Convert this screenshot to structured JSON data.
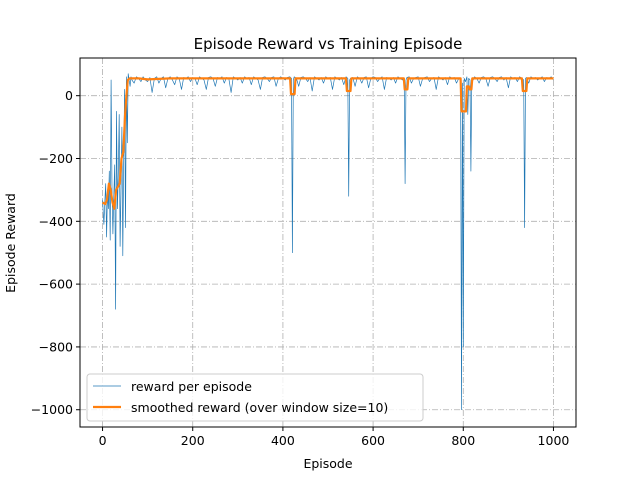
{
  "chart_data": {
    "type": "line",
    "title": "Episode Reward vs Training Episode",
    "xlabel": "Episode",
    "ylabel": "Episode Reward",
    "xlim": [
      -50,
      1050
    ],
    "ylim": [
      -1055,
      120
    ],
    "xticks": [
      0,
      200,
      400,
      600,
      800,
      1000
    ],
    "yticks": [
      0,
      -200,
      -400,
      -600,
      -800,
      -1000
    ],
    "xtick_labels": [
      "0",
      "200",
      "400",
      "600",
      "800",
      "1000"
    ],
    "ytick_labels": [
      "0",
      "−200",
      "−400",
      "−600",
      "−800",
      "−1000"
    ],
    "grid": true,
    "grid_style": "dash-dot",
    "legend_position": "lower-left",
    "colors": {
      "raw": "#1f77b4",
      "smooth": "#ff7f0e",
      "grid": "#b0b0b0"
    },
    "series": [
      {
        "name": "reward per episode",
        "style": "thin-line",
        "points": [
          [
            0,
            -330
          ],
          [
            3,
            -410
          ],
          [
            5,
            -340
          ],
          [
            7,
            -280
          ],
          [
            9,
            -450
          ],
          [
            11,
            -300
          ],
          [
            13,
            -360
          ],
          [
            15,
            -240
          ],
          [
            17,
            -460
          ],
          [
            19,
            50
          ],
          [
            21,
            -300
          ],
          [
            23,
            -440
          ],
          [
            25,
            -320
          ],
          [
            27,
            -220
          ],
          [
            29,
            -680
          ],
          [
            31,
            -50
          ],
          [
            33,
            -360
          ],
          [
            35,
            -250
          ],
          [
            37,
            -60
          ],
          [
            39,
            -480
          ],
          [
            41,
            -300
          ],
          [
            43,
            -100
          ],
          [
            45,
            -510
          ],
          [
            47,
            -200
          ],
          [
            49,
            20
          ],
          [
            51,
            -420
          ],
          [
            53,
            60
          ],
          [
            55,
            -150
          ],
          [
            57,
            70
          ],
          [
            59,
            50
          ],
          [
            61,
            30
          ],
          [
            63,
            60
          ],
          [
            65,
            50
          ],
          [
            70,
            40
          ],
          [
            75,
            60
          ],
          [
            80,
            55
          ],
          [
            85,
            45
          ],
          [
            90,
            60
          ],
          [
            95,
            50
          ],
          [
            100,
            45
          ],
          [
            105,
            58
          ],
          [
            110,
            10
          ],
          [
            115,
            55
          ],
          [
            120,
            60
          ],
          [
            125,
            40
          ],
          [
            130,
            55
          ],
          [
            135,
            60
          ],
          [
            140,
            25
          ],
          [
            145,
            55
          ],
          [
            150,
            60
          ],
          [
            155,
            50
          ],
          [
            160,
            35
          ],
          [
            165,
            60
          ],
          [
            170,
            55
          ],
          [
            175,
            20
          ],
          [
            180,
            58
          ],
          [
            185,
            55
          ],
          [
            190,
            60
          ],
          [
            195,
            45
          ],
          [
            200,
            57
          ],
          [
            205,
            55
          ],
          [
            210,
            35
          ],
          [
            215,
            60
          ],
          [
            220,
            55
          ],
          [
            225,
            50
          ],
          [
            230,
            20
          ],
          [
            235,
            58
          ],
          [
            240,
            60
          ],
          [
            245,
            55
          ],
          [
            250,
            30
          ],
          [
            255,
            58
          ],
          [
            260,
            55
          ],
          [
            265,
            60
          ],
          [
            270,
            40
          ],
          [
            275,
            58
          ],
          [
            280,
            55
          ],
          [
            285,
            10
          ],
          [
            290,
            60
          ],
          [
            295,
            55
          ],
          [
            300,
            50
          ],
          [
            305,
            58
          ],
          [
            310,
            40
          ],
          [
            315,
            60
          ],
          [
            320,
            55
          ],
          [
            325,
            58
          ],
          [
            330,
            35
          ],
          [
            335,
            60
          ],
          [
            340,
            55
          ],
          [
            345,
            50
          ],
          [
            350,
            20
          ],
          [
            355,
            58
          ],
          [
            360,
            60
          ],
          [
            365,
            55
          ],
          [
            370,
            45
          ],
          [
            375,
            58
          ],
          [
            380,
            60
          ],
          [
            385,
            30
          ],
          [
            390,
            55
          ],
          [
            395,
            60
          ],
          [
            400,
            55
          ],
          [
            405,
            50
          ],
          [
            410,
            58
          ],
          [
            415,
            60
          ],
          [
            419,
            55
          ],
          [
            421,
            -500
          ],
          [
            423,
            50
          ],
          [
            425,
            60
          ],
          [
            430,
            55
          ],
          [
            435,
            30
          ],
          [
            440,
            58
          ],
          [
            445,
            60
          ],
          [
            450,
            55
          ],
          [
            455,
            45
          ],
          [
            460,
            58
          ],
          [
            465,
            15
          ],
          [
            470,
            60
          ],
          [
            475,
            55
          ],
          [
            480,
            50
          ],
          [
            485,
            58
          ],
          [
            490,
            40
          ],
          [
            495,
            60
          ],
          [
            500,
            55
          ],
          [
            505,
            58
          ],
          [
            510,
            20
          ],
          [
            515,
            60
          ],
          [
            520,
            55
          ],
          [
            525,
            50
          ],
          [
            530,
            58
          ],
          [
            535,
            35
          ],
          [
            540,
            60
          ],
          [
            544,
            55
          ],
          [
            546,
            -320
          ],
          [
            548,
            50
          ],
          [
            550,
            55
          ],
          [
            555,
            58
          ],
          [
            560,
            30
          ],
          [
            565,
            60
          ],
          [
            570,
            55
          ],
          [
            575,
            40
          ],
          [
            580,
            58
          ],
          [
            585,
            60
          ],
          [
            590,
            25
          ],
          [
            595,
            55
          ],
          [
            600,
            60
          ],
          [
            605,
            58
          ],
          [
            610,
            45
          ],
          [
            615,
            55
          ],
          [
            620,
            60
          ],
          [
            625,
            20
          ],
          [
            630,
            58
          ],
          [
            635,
            55
          ],
          [
            640,
            50
          ],
          [
            645,
            58
          ],
          [
            650,
            40
          ],
          [
            655,
            60
          ],
          [
            660,
            55
          ],
          [
            665,
            50
          ],
          [
            669,
            55
          ],
          [
            671,
            -280
          ],
          [
            673,
            50
          ],
          [
            675,
            58
          ],
          [
            680,
            60
          ],
          [
            685,
            40
          ],
          [
            690,
            55
          ],
          [
            695,
            58
          ],
          [
            700,
            60
          ],
          [
            705,
            30
          ],
          [
            710,
            55
          ],
          [
            715,
            58
          ],
          [
            720,
            60
          ],
          [
            725,
            45
          ],
          [
            730,
            55
          ],
          [
            735,
            58
          ],
          [
            740,
            20
          ],
          [
            745,
            60
          ],
          [
            750,
            55
          ],
          [
            755,
            50
          ],
          [
            760,
            58
          ],
          [
            765,
            35
          ],
          [
            770,
            60
          ],
          [
            775,
            55
          ],
          [
            780,
            58
          ],
          [
            785,
            40
          ],
          [
            790,
            55
          ],
          [
            794,
            50
          ],
          [
            796,
            -1000
          ],
          [
            798,
            40
          ],
          [
            800,
            -800
          ],
          [
            802,
            55
          ],
          [
            805,
            45
          ],
          [
            808,
            60
          ],
          [
            810,
            -60
          ],
          [
            812,
            55
          ],
          [
            815,
            50
          ],
          [
            817,
            -240
          ],
          [
            819,
            55
          ],
          [
            822,
            50
          ],
          [
            825,
            60
          ],
          [
            830,
            55
          ],
          [
            835,
            40
          ],
          [
            840,
            58
          ],
          [
            845,
            60
          ],
          [
            850,
            55
          ],
          [
            855,
            30
          ],
          [
            860,
            58
          ],
          [
            865,
            60
          ],
          [
            870,
            55
          ],
          [
            875,
            45
          ],
          [
            880,
            58
          ],
          [
            885,
            60
          ],
          [
            890,
            50
          ],
          [
            895,
            58
          ],
          [
            900,
            25
          ],
          [
            905,
            60
          ],
          [
            910,
            55
          ],
          [
            915,
            58
          ],
          [
            920,
            45
          ],
          [
            925,
            60
          ],
          [
            930,
            55
          ],
          [
            934,
            50
          ],
          [
            936,
            -420
          ],
          [
            938,
            55
          ],
          [
            940,
            58
          ],
          [
            945,
            40
          ],
          [
            950,
            60
          ],
          [
            955,
            55
          ],
          [
            960,
            58
          ],
          [
            965,
            50
          ],
          [
            970,
            55
          ],
          [
            975,
            60
          ],
          [
            980,
            45
          ],
          [
            985,
            58
          ],
          [
            990,
            55
          ],
          [
            995,
            60
          ],
          [
            1000,
            50
          ]
        ]
      },
      {
        "name": "smoothed reward (over window size=10)",
        "style": "thick-line",
        "points": [
          [
            0,
            -340
          ],
          [
            6,
            -345
          ],
          [
            10,
            -330
          ],
          [
            14,
            -280
          ],
          [
            18,
            -300
          ],
          [
            22,
            -340
          ],
          [
            26,
            -360
          ],
          [
            30,
            -300
          ],
          [
            34,
            -290
          ],
          [
            38,
            -280
          ],
          [
            42,
            -200
          ],
          [
            46,
            -180
          ],
          [
            50,
            -60
          ],
          [
            53,
            0
          ],
          [
            56,
            50
          ],
          [
            60,
            55
          ],
          [
            80,
            55
          ],
          [
            100,
            52
          ],
          [
            150,
            55
          ],
          [
            200,
            55
          ],
          [
            250,
            55
          ],
          [
            300,
            55
          ],
          [
            350,
            55
          ],
          [
            400,
            55
          ],
          [
            416,
            55
          ],
          [
            418,
            5
          ],
          [
            426,
            5
          ],
          [
            428,
            55
          ],
          [
            500,
            55
          ],
          [
            540,
            55
          ],
          [
            542,
            15
          ],
          [
            550,
            15
          ],
          [
            552,
            55
          ],
          [
            600,
            55
          ],
          [
            668,
            55
          ],
          [
            670,
            20
          ],
          [
            676,
            20
          ],
          [
            678,
            55
          ],
          [
            750,
            55
          ],
          [
            794,
            55
          ],
          [
            796,
            -50
          ],
          [
            806,
            -50
          ],
          [
            808,
            30
          ],
          [
            812,
            30
          ],
          [
            814,
            20
          ],
          [
            818,
            20
          ],
          [
            820,
            55
          ],
          [
            900,
            55
          ],
          [
            930,
            55
          ],
          [
            932,
            15
          ],
          [
            940,
            15
          ],
          [
            942,
            55
          ],
          [
            1000,
            55
          ]
        ]
      }
    ]
  }
}
